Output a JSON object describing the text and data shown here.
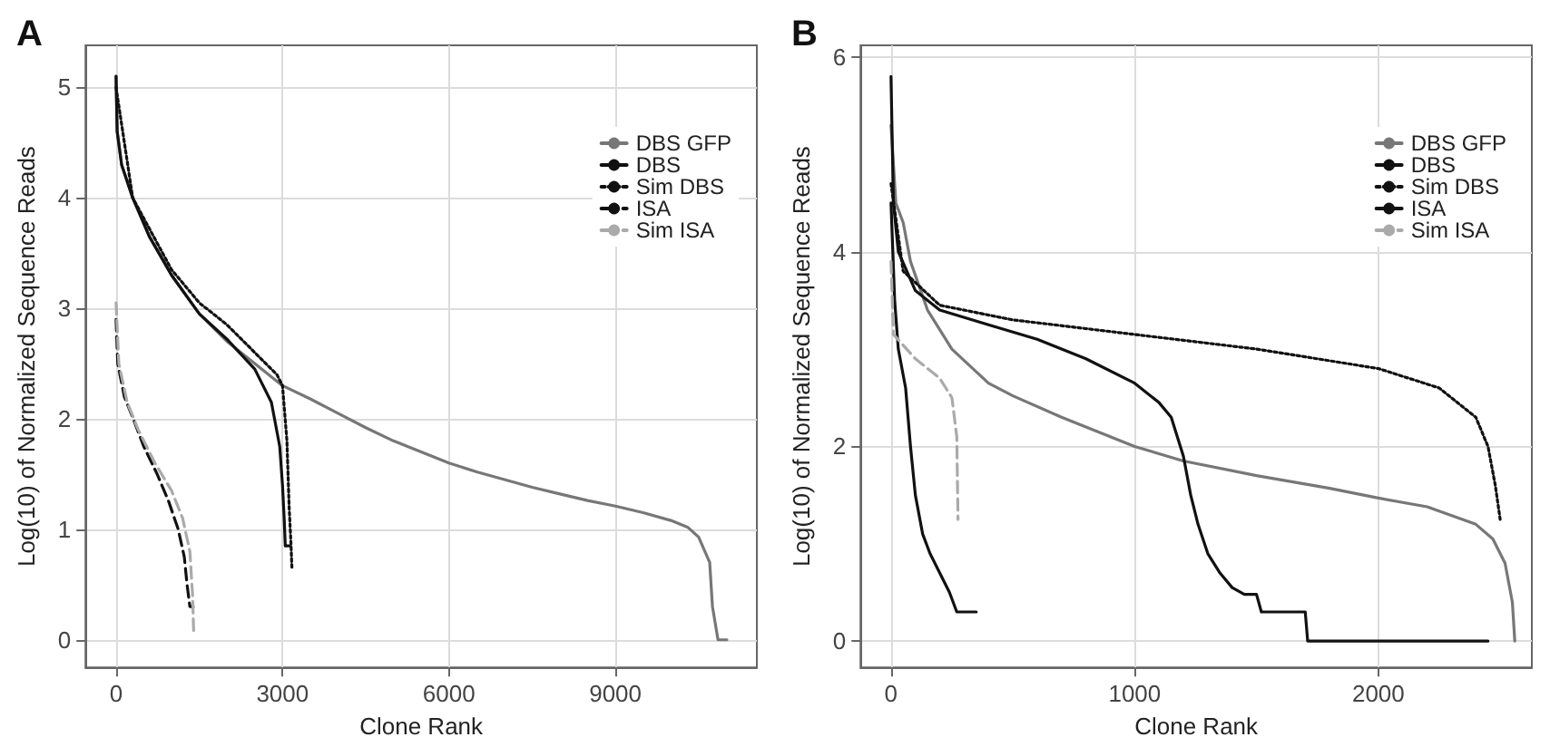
{
  "chart_data": [
    {
      "type": "line",
      "title": "A",
      "xlabel": "Clone Rank",
      "ylabel": "Log(10) of Normalized Sequence Reads",
      "xlim": [
        -550,
        11550
      ],
      "xticks": [
        0,
        3000,
        6000,
        9000
      ],
      "ylim": [
        -0.25,
        5.38
      ],
      "yticks": [
        0,
        1,
        2,
        3,
        4,
        5
      ],
      "grid": true,
      "legend": "top right",
      "marker": "none",
      "series": [
        {
          "name": "DBS GFP",
          "color": "#777777",
          "line_style": "solid",
          "x": [
            0,
            20,
            100,
            300,
            600,
            1000,
            1500,
            2000,
            2500,
            3000,
            3500,
            4000,
            4500,
            5000,
            5500,
            6000,
            6500,
            7000,
            7500,
            8000,
            8500,
            9000,
            9500,
            10000,
            10300,
            10500,
            10700,
            10750,
            10850,
            11010
          ],
          "values": [
            5.1,
            4.6,
            4.3,
            4.0,
            3.65,
            3.3,
            2.95,
            2.7,
            2.5,
            2.3,
            2.18,
            2.05,
            1.92,
            1.8,
            1.7,
            1.6,
            1.52,
            1.45,
            1.38,
            1.32,
            1.26,
            1.21,
            1.15,
            1.08,
            1.02,
            0.93,
            0.7,
            0.3,
            0,
            0
          ]
        },
        {
          "name": "DBS",
          "color": "#111111",
          "line_style": "solid",
          "x": [
            0,
            20,
            100,
            300,
            600,
            1000,
            1500,
            2000,
            2500,
            2800,
            2950,
            3000,
            3030,
            3050,
            3120
          ],
          "values": [
            5.1,
            4.6,
            4.3,
            4.0,
            3.65,
            3.3,
            2.95,
            2.72,
            2.45,
            2.15,
            1.75,
            1.4,
            1.1,
            0.85,
            0.85
          ]
        },
        {
          "name": "Sim DBS",
          "color": "#111111",
          "line_style": "dotted",
          "x": [
            0,
            300,
            1000,
            1500,
            2000,
            2500,
            2900,
            3000,
            3080,
            3120,
            3150,
            3170
          ],
          "values": [
            5.0,
            4.0,
            3.35,
            3.05,
            2.85,
            2.6,
            2.4,
            2.3,
            1.8,
            1.2,
            0.9,
            0.65
          ]
        },
        {
          "name": "ISA",
          "color": "#111111",
          "line_style": "dashed",
          "x": [
            0,
            30,
            150,
            310,
            500,
            740,
            950,
            1120,
            1230,
            1280,
            1330,
            1390
          ],
          "values": [
            2.9,
            2.5,
            2.2,
            2.0,
            1.75,
            1.5,
            1.25,
            1.0,
            0.75,
            0.5,
            0.3,
            0.3
          ]
        },
        {
          "name": "Sim ISA",
          "color": "#aaaaaa",
          "line_style": "dashed",
          "x": [
            0,
            50,
            200,
            400,
            700,
            1000,
            1200,
            1330,
            1380,
            1400
          ],
          "values": [
            3.05,
            2.5,
            2.15,
            1.9,
            1.6,
            1.35,
            1.1,
            0.8,
            0.4,
            0.05
          ]
        }
      ]
    },
    {
      "type": "line",
      "title": "B",
      "xlabel": "Clone Rank",
      "ylabel": "Log(10) of Normalized Sequence Reads",
      "xlim": [
        -125,
        2630
      ],
      "xticks": [
        0,
        1000,
        2000
      ],
      "ylim": [
        -0.27,
        6.12
      ],
      "yticks": [
        0,
        2,
        4,
        6
      ],
      "grid": true,
      "legend": "top right",
      "marker": "none",
      "series": [
        {
          "name": "DBS GFP",
          "color": "#777777",
          "line_style": "solid",
          "x": [
            0,
            20,
            50,
            80,
            150,
            250,
            400,
            500,
            700,
            1000,
            1200,
            1500,
            1800,
            2000,
            2200,
            2400,
            2470,
            2520,
            2550,
            2560
          ],
          "values": [
            5.3,
            4.5,
            4.3,
            3.9,
            3.4,
            3.0,
            2.65,
            2.52,
            2.3,
            2.0,
            1.85,
            1.7,
            1.57,
            1.47,
            1.38,
            1.2,
            1.05,
            0.8,
            0.4,
            0
          ]
        },
        {
          "name": "DBS",
          "color": "#111111",
          "line_style": "solid",
          "x": [
            0,
            10,
            30,
            100,
            200,
            400,
            600,
            800,
            1000,
            1100,
            1150,
            1200,
            1230,
            1260,
            1300,
            1350,
            1400,
            1450,
            1500,
            1520,
            1700,
            1710,
            2450
          ],
          "values": [
            5.8,
            4.5,
            4.0,
            3.6,
            3.4,
            3.25,
            3.1,
            2.9,
            2.65,
            2.45,
            2.3,
            1.9,
            1.5,
            1.2,
            0.9,
            0.7,
            0.55,
            0.48,
            0.48,
            0.3,
            0.3,
            0,
            0
          ]
        },
        {
          "name": "Sim DBS",
          "color": "#111111",
          "line_style": "dotted",
          "x": [
            0,
            50,
            200,
            500,
            1000,
            1500,
            2000,
            2250,
            2400,
            2450,
            2480,
            2500
          ],
          "values": [
            4.7,
            3.8,
            3.45,
            3.3,
            3.15,
            3.0,
            2.8,
            2.6,
            2.3,
            2.0,
            1.6,
            1.25
          ]
        },
        {
          "name": "ISA",
          "color": "#111111",
          "line_style": "solid",
          "x": [
            0,
            15,
            30,
            60,
            80,
            100,
            130,
            160,
            200,
            240,
            270,
            350
          ],
          "values": [
            4.5,
            3.5,
            3.0,
            2.6,
            2.0,
            1.5,
            1.1,
            0.9,
            0.7,
            0.5,
            0.3,
            0.3
          ]
        },
        {
          "name": "Sim ISA",
          "color": "#aaaaaa",
          "line_style": "dashed",
          "x": [
            0,
            10,
            100,
            200,
            250,
            270,
            275
          ],
          "values": [
            3.9,
            3.15,
            2.9,
            2.7,
            2.5,
            2.1,
            1.25
          ]
        }
      ]
    }
  ]
}
